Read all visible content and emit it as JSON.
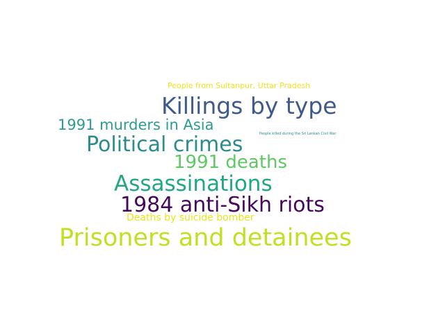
{
  "word_cloud": {
    "words": [
      {
        "id": "prisoners",
        "text": "Prisoners and detainees",
        "color": "#c2df23"
      },
      {
        "id": "killings",
        "text": "Killings by type",
        "color": "#3f5a8a"
      },
      {
        "id": "anti_sikh",
        "text": "1984 anti-Sikh riots",
        "color": "#46085c"
      },
      {
        "id": "assassinations",
        "text": "Assassinations",
        "color": "#22a785"
      },
      {
        "id": "political",
        "text": "Political crimes",
        "color": "#2c8c8c"
      },
      {
        "id": "deaths_1991",
        "text": "1991 deaths",
        "color": "#5ec962"
      },
      {
        "id": "murders_1991",
        "text": "1991 murders in Asia",
        "color": "#2a9d8f"
      },
      {
        "id": "suicide",
        "text": "Deaths by suicide bomber",
        "color": "#e8e61e"
      },
      {
        "id": "sultanpur",
        "text": "People from Sultanpur, Uttar Pradesh",
        "color": "#f2e11b"
      },
      {
        "id": "srilanka",
        "text": "People killed during the Sri Lankan Civil War",
        "color": "#2a8c8c"
      }
    ]
  }
}
